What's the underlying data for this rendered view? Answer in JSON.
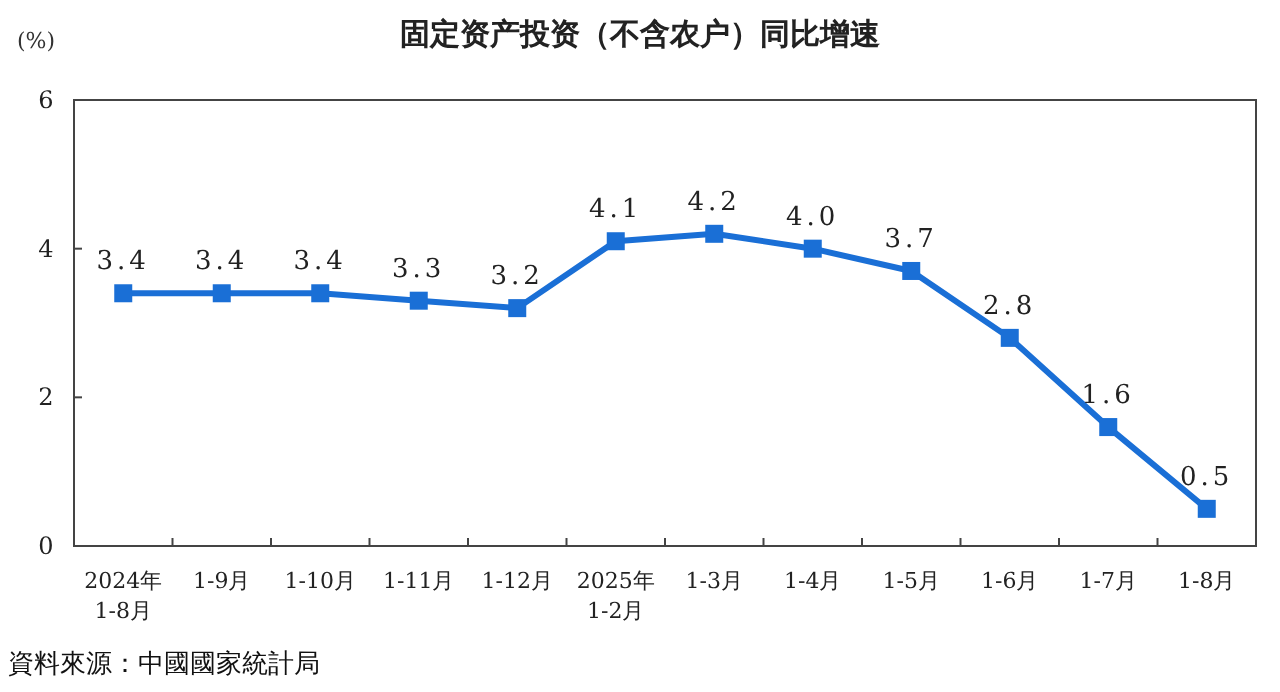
{
  "chart_data": {
    "type": "line",
    "title": "固定资产投资（不含农户）同比增速",
    "ylabel": "(%)",
    "categories": [
      "2024年\n1-8月",
      "1-9月",
      "1-10月",
      "1-11月",
      "1-12月",
      "2025年\n1-2月",
      "1-3月",
      "1-4月",
      "1-5月",
      "1-6月",
      "1-7月",
      "1-8月"
    ],
    "series": [
      {
        "color": "#1a6fd6",
        "values": [
          3.4,
          3.4,
          3.4,
          3.3,
          3.2,
          4.1,
          4.2,
          4.0,
          3.7,
          2.8,
          1.6,
          0.5
        ],
        "value_labels": [
          "3.4",
          "3.4",
          "3.4",
          "3.3",
          "3.2",
          "4.1",
          "4.2",
          "4.0",
          "3.7",
          "2.8",
          "1.6",
          "0.5"
        ]
      }
    ],
    "ylim": [
      0,
      6
    ],
    "yticks": [
      0,
      2,
      4,
      6
    ],
    "grid": false,
    "marker": "square",
    "line_style": "solid",
    "annotations": [
      "資料來源：中國國家統計局"
    ]
  }
}
